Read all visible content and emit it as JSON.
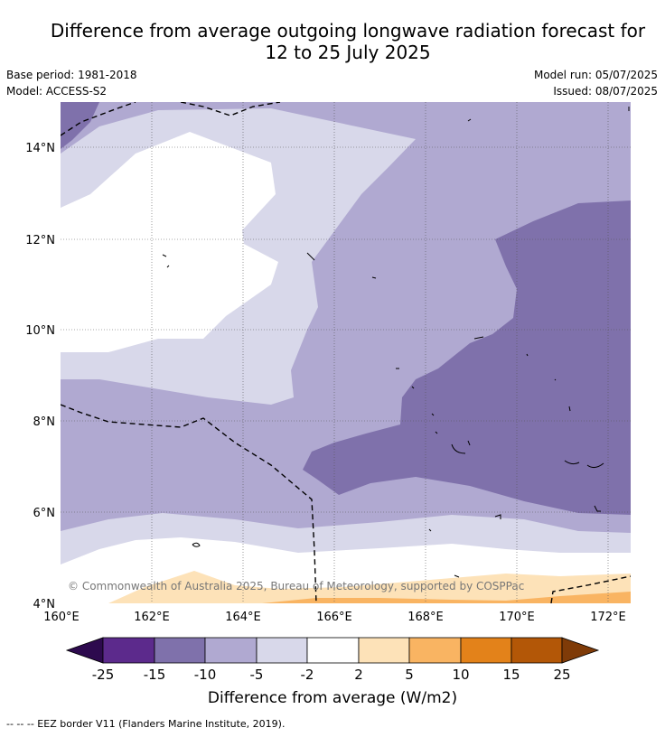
{
  "title_line1": "Difference from average outgoing longwave radiation forecast for",
  "title_line2": "12 to 25 July 2025",
  "base_period": "Base period: 1981-2018",
  "model": "Model: ACCESS-S2",
  "model_run": "Model run: 05/07/2025",
  "issued": "Issued: 08/07/2025",
  "copyright": "© Commonwealth of Australia 2025, Bureau of Meteorology, supported by COSPPac",
  "map": {
    "lat_ticks": [
      "14°N",
      "12°N",
      "10°N",
      "8°N",
      "6°N",
      "4°N"
    ],
    "lon_ticks": [
      "160°E",
      "162°E",
      "164°E",
      "166°E",
      "168°E",
      "170°E",
      "172°E"
    ],
    "lat_values": [
      14,
      12,
      10,
      8,
      6,
      4
    ],
    "lon_values": [
      160,
      162,
      164,
      166,
      168,
      170,
      172
    ]
  },
  "colorbar": {
    "label": "Difference from average (W/m2)",
    "tick_labels": [
      "-25",
      "-15",
      "-10",
      "-5",
      "-2",
      "2",
      "5",
      "10",
      "15",
      "25"
    ],
    "colors": [
      "#2d0a4e",
      "#5c2a8c",
      "#7f71ab",
      "#b0a9d1",
      "#d8d8ea",
      "#ffffff",
      "#fde2b8",
      "#f9b462",
      "#e3821a",
      "#b35707",
      "#7f3b08"
    ]
  },
  "footer": "--  --  -- EEZ border V11 (Flanders Marine Institute, 2019)."
}
